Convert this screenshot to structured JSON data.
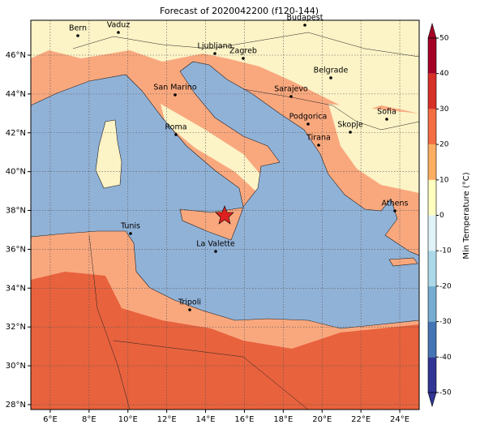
{
  "title": "Forecast of 2020042200 (f120-144)",
  "map": {
    "lon_ticks": [
      {
        "value": 6,
        "label": "6°E"
      },
      {
        "value": 8,
        "label": "8°E"
      },
      {
        "value": 10,
        "label": "10°E"
      },
      {
        "value": 12,
        "label": "12°E"
      },
      {
        "value": 14,
        "label": "14°E"
      },
      {
        "value": 16,
        "label": "16°E"
      },
      {
        "value": 18,
        "label": "18°E"
      },
      {
        "value": 20,
        "label": "20°E"
      },
      {
        "value": 22,
        "label": "22°E"
      },
      {
        "value": 24,
        "label": "24°E"
      }
    ],
    "lat_ticks": [
      {
        "value": 28,
        "label": "28°N"
      },
      {
        "value": 30,
        "label": "30°N"
      },
      {
        "value": 32,
        "label": "32°N"
      },
      {
        "value": 34,
        "label": "34°N"
      },
      {
        "value": 36,
        "label": "36°N"
      },
      {
        "value": 38,
        "label": "38°N"
      },
      {
        "value": 40,
        "label": "40°N"
      },
      {
        "value": 42,
        "label": "42°N"
      },
      {
        "value": 44,
        "label": "44°N"
      },
      {
        "value": 46,
        "label": "46°N"
      }
    ],
    "cities": [
      "Bern",
      "Vaduz",
      "Budapest",
      "Ljubljana",
      "Zagreb",
      "San Marino",
      "Sarajevo",
      "Belgrade",
      "Sofia",
      "Podgorica",
      "Skopje",
      "Roma",
      "Tirana",
      "Athens",
      "Tunis",
      "La Valette",
      "Tripoli"
    ]
  },
  "colorbar": {
    "label": "Min Temperature (°C)",
    "ticks": [
      -50,
      -40,
      -30,
      -20,
      -10,
      0,
      10,
      20,
      30,
      40,
      50
    ]
  }
}
